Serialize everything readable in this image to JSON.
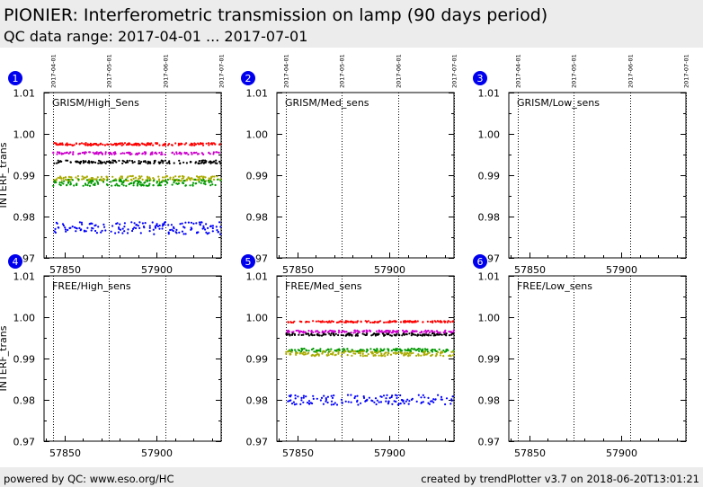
{
  "header": {
    "title": "PIONIER: Interferometric transmission on lamp (90 days period)",
    "subtitle": "QC data range: 2017-04-01 ... 2017-07-01"
  },
  "footer": {
    "left": "powered by QC: www.eso.org/HC",
    "right": "created by trendPlotter v3.7 on 2018-06-20T13:01:21"
  },
  "colors": {
    "background": "#ffffff",
    "band": "#ececec",
    "badge": "#0000ee"
  },
  "chart_data": {
    "type": "scatter",
    "ylabel": "INTERF_trans",
    "xlim": [
      57839,
      57935
    ],
    "ylim": [
      0.97,
      1.01
    ],
    "yticks": [
      0.97,
      0.98,
      0.99,
      1.0,
      1.01
    ],
    "ytick_labels": [
      "0.97",
      "0.98",
      "0.99",
      "1.00",
      "1.01"
    ],
    "xticks": [
      57850,
      57900
    ],
    "xtick_labels": [
      "57850",
      "57900"
    ],
    "date_markers": [
      {
        "mjd": 57844,
        "label": "2017-04-01"
      },
      {
        "mjd": 57874,
        "label": "2017-05-01"
      },
      {
        "mjd": 57905,
        "label": "2017-06-01"
      },
      {
        "mjd": 57935,
        "label": "2017-07-01"
      }
    ],
    "panels": [
      {
        "number": "1",
        "label": "GRISM/High_Sens",
        "xrange": [
          57844,
          57934
        ],
        "series": [
          {
            "color": "#ff0000",
            "level": 0.9975,
            "jitter": 0.0003
          },
          {
            "color": "#cc00cc",
            "level": 0.9953,
            "jitter": 0.0003
          },
          {
            "color": "#000000",
            "level": 0.9932,
            "jitter": 0.0004
          },
          {
            "color": "#aaaa00",
            "level": 0.9892,
            "jitter": 0.0006
          },
          {
            "color": "#009900",
            "level": 0.9882,
            "jitter": 0.0008
          },
          {
            "color": "#0000ff",
            "level": 0.9772,
            "jitter": 0.0015
          }
        ]
      },
      {
        "number": "2",
        "label": "GRISM/Med_sens",
        "series": []
      },
      {
        "number": "3",
        "label": "GRISM/Low_sens",
        "series": []
      },
      {
        "number": "4",
        "label": "FREE/High_sens",
        "series": []
      },
      {
        "number": "5",
        "label": "FREE/Med_sens",
        "xrange": [
          57844,
          57934
        ],
        "series": [
          {
            "color": "#ff0000",
            "level": 0.9989,
            "jitter": 0.0002
          },
          {
            "color": "#cc00cc",
            "level": 0.9965,
            "jitter": 0.0003
          },
          {
            "color": "#000000",
            "level": 0.9958,
            "jitter": 0.0003
          },
          {
            "color": "#009900",
            "level": 0.992,
            "jitter": 0.0004
          },
          {
            "color": "#aaaa00",
            "level": 0.9912,
            "jitter": 0.0006
          },
          {
            "color": "#0000ff",
            "level": 0.98,
            "jitter": 0.0012
          }
        ]
      },
      {
        "number": "6",
        "label": "FREE/Low_sens",
        "series": []
      }
    ]
  }
}
